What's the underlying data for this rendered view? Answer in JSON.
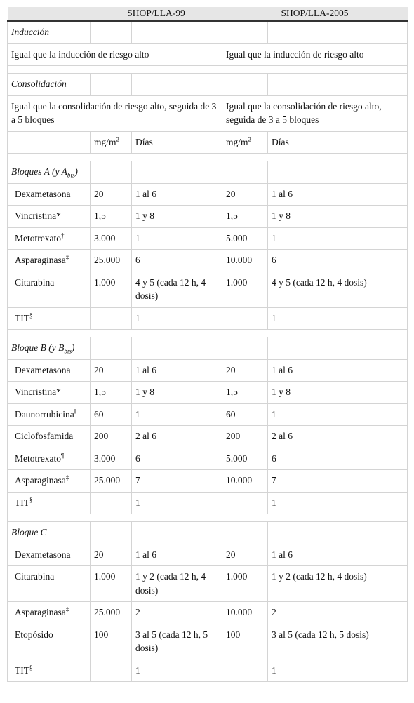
{
  "header": {
    "col1": "SHOP/LLA-99",
    "col2": "SHOP/LLA-2005"
  },
  "sections": [
    {
      "title": "Inducción",
      "note": [
        "Igual que la inducción de riesgo alto",
        "Igual que la inducción de riesgo alto"
      ]
    },
    {
      "title": "Consolidación",
      "note": [
        "Igual que la consolidación de riesgo alto, seguida de 3 a 5 bloques",
        "Igual que la consolidación de riesgo alto, seguida de 3 a 5 bloques"
      ],
      "units": {
        "dose": {
          "text": "mg/m",
          "sup": "2"
        },
        "days": "Días"
      }
    },
    {
      "title": {
        "text": "Bloques A (y A",
        "sub": "bis",
        "after": ")"
      },
      "rows": [
        [
          "Dexametasona",
          "20",
          "1 al 6",
          "20",
          "1 al 6"
        ],
        [
          "Vincristina*",
          "1,5",
          "1 y 8",
          "1,5",
          "1 y 8"
        ],
        [
          {
            "text": "Metotrexato",
            "sup": "†"
          },
          "3.000",
          "1",
          "5.000",
          "1"
        ],
        [
          {
            "text": "Asparaginasa",
            "sup": "‡"
          },
          "25.000",
          "6",
          "10.000",
          "6"
        ],
        [
          "Citarabina",
          "1.000",
          "4 y 5 (cada 12 h, 4 dosis)",
          "1.000",
          "4 y 5 (cada 12 h, 4 dosis)"
        ],
        [
          {
            "text": "TIT",
            "sup": "§"
          },
          null,
          "1",
          null,
          "1"
        ]
      ]
    },
    {
      "title": {
        "text": "Bloque B (y B",
        "sub": "bis",
        "after": ")"
      },
      "rows": [
        [
          "Dexametasona",
          "20",
          "1 al 6",
          "20",
          "1 al 6"
        ],
        [
          "Vincristina*",
          "1,5",
          "1 y 8",
          "1,5",
          "1 y 8"
        ],
        [
          {
            "text": "Daunorrubicina",
            "sup": "‖"
          },
          "60",
          "1",
          "60",
          "1"
        ],
        [
          "Ciclofosfamida",
          "200",
          "2 al 6",
          "200",
          "2 al 6"
        ],
        [
          {
            "text": "Metotrexato",
            "sup": "¶"
          },
          "3.000",
          "6",
          "5.000",
          "6"
        ],
        [
          {
            "text": "Asparaginasa",
            "sup": "‡"
          },
          "25.000",
          "7",
          "10.000",
          "7"
        ],
        [
          {
            "text": "TIT",
            "sup": "§"
          },
          null,
          "1",
          null,
          "1"
        ]
      ]
    },
    {
      "title": "Bloque C",
      "rows": [
        [
          "Dexametasona",
          "20",
          "1 al 6",
          "20",
          "1 al 6"
        ],
        [
          "Citarabina",
          "1.000",
          "1 y 2 (cada 12 h, 4 dosis)",
          "1.000",
          "1 y 2 (cada 12 h, 4 dosis)"
        ],
        [
          {
            "text": "Asparaginasa",
            "sup": "‡"
          },
          "25.000",
          "2",
          "10.000",
          "2"
        ],
        [
          "Etopósido",
          "100",
          "3 al 5 (cada 12 h, 5 dosis)",
          "100",
          "3 al 5 (cada 12 h, 5 dosis)"
        ],
        [
          {
            "text": "TIT",
            "sup": "§"
          },
          null,
          "1",
          null,
          "1"
        ]
      ]
    }
  ]
}
